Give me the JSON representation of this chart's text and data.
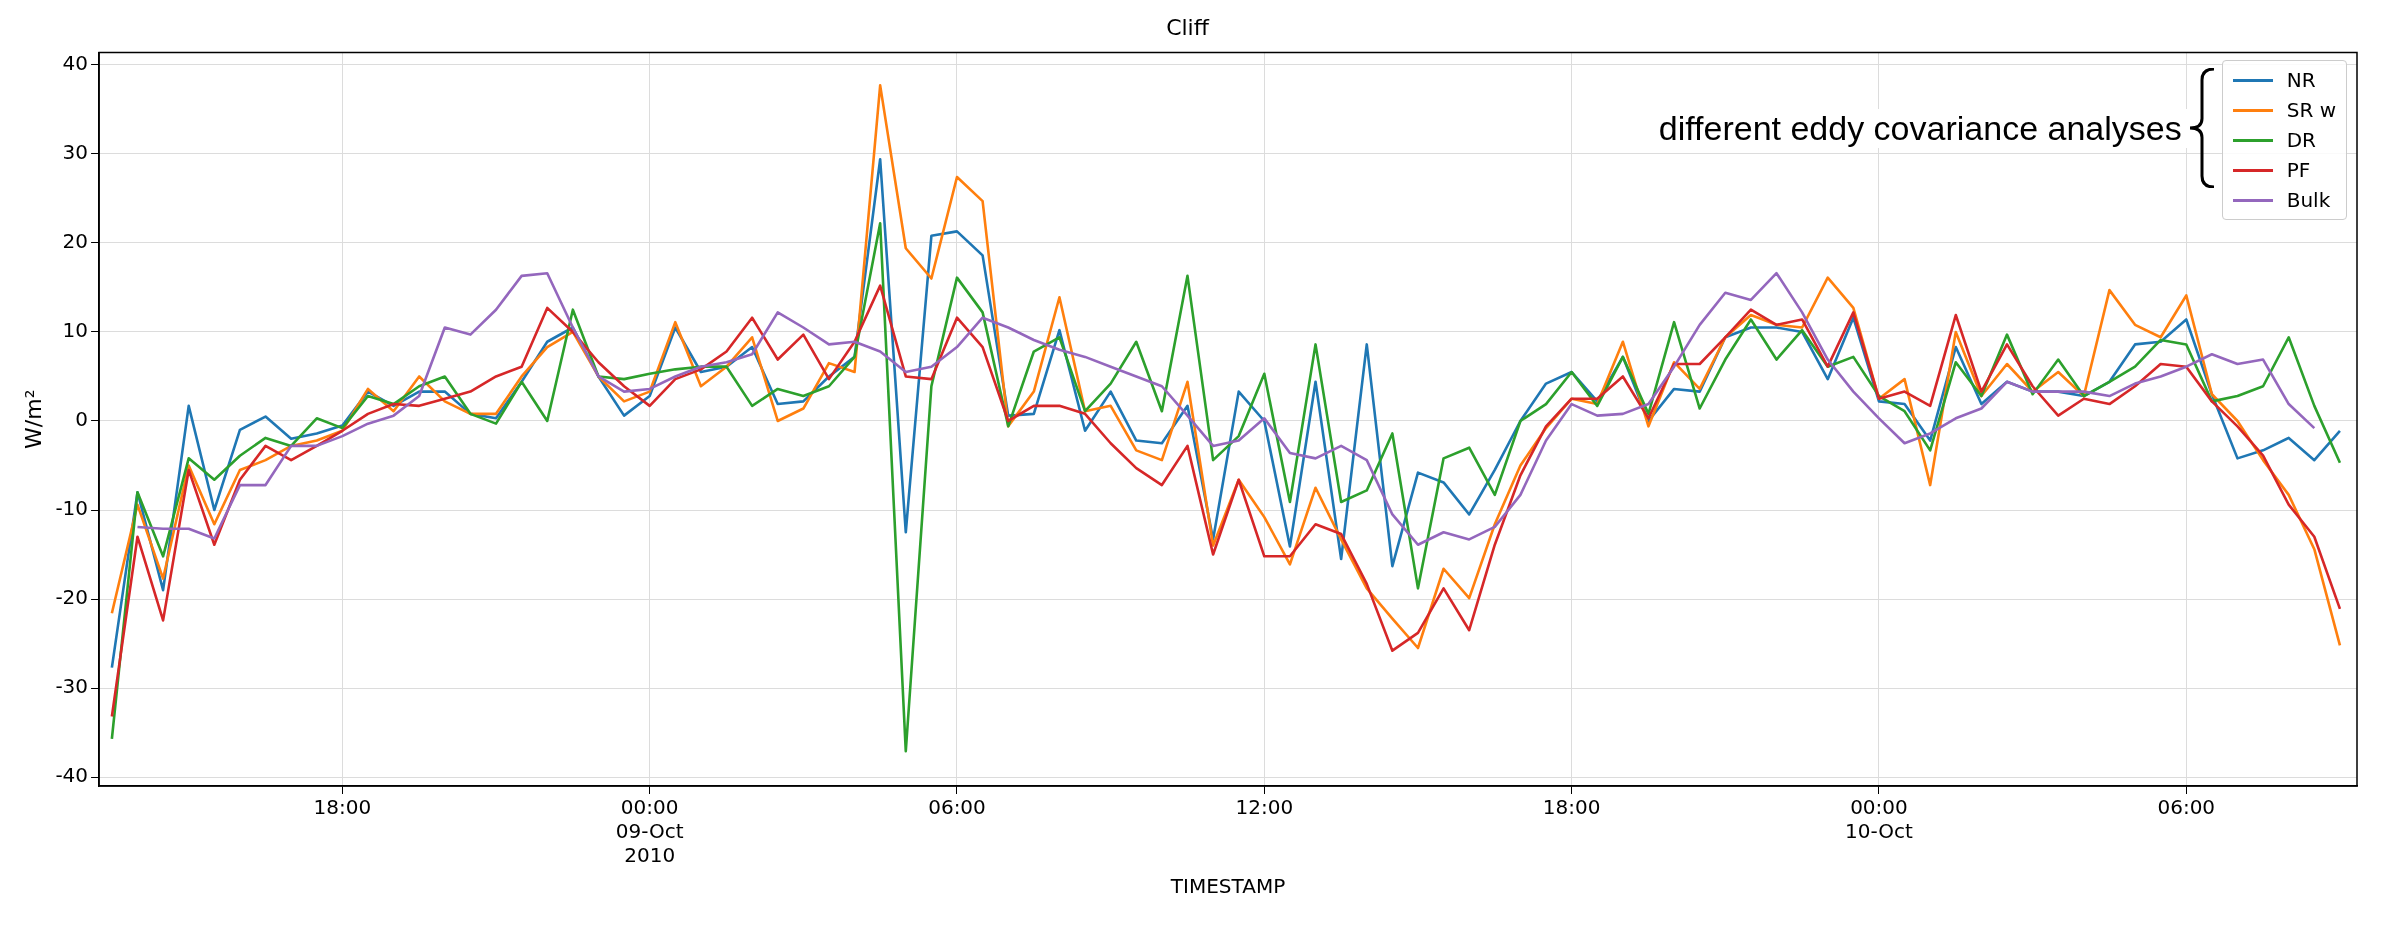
{
  "chart_data": {
    "type": "line",
    "title": "Cliff",
    "xlabel": "TIMESTAMP",
    "ylabel": "W/m²",
    "annotations": [
      "different eddy covariance analyses"
    ],
    "x": [
      "2010-10-08T13:30",
      "2010-10-08T14:00",
      "2010-10-08T14:30",
      "2010-10-08T15:00",
      "2010-10-08T15:30",
      "2010-10-08T16:00",
      "2010-10-08T16:30",
      "2010-10-08T17:00",
      "2010-10-08T17:30",
      "2010-10-08T18:00",
      "2010-10-08T18:30",
      "2010-10-08T19:00",
      "2010-10-08T19:30",
      "2010-10-08T20:00",
      "2010-10-08T20:30",
      "2010-10-08T21:00",
      "2010-10-08T21:30",
      "2010-10-08T22:00",
      "2010-10-08T22:30",
      "2010-10-08T23:00",
      "2010-10-08T23:30",
      "2010-10-09T00:00",
      "2010-10-09T00:30",
      "2010-10-09T01:00",
      "2010-10-09T01:30",
      "2010-10-09T02:00",
      "2010-10-09T02:30",
      "2010-10-09T03:00",
      "2010-10-09T03:30",
      "2010-10-09T04:00",
      "2010-10-09T04:30",
      "2010-10-09T05:00",
      "2010-10-09T05:30",
      "2010-10-09T06:00",
      "2010-10-09T06:30",
      "2010-10-09T07:00",
      "2010-10-09T07:30",
      "2010-10-09T08:00",
      "2010-10-09T08:30",
      "2010-10-09T09:00",
      "2010-10-09T09:30",
      "2010-10-09T10:00",
      "2010-10-09T10:30",
      "2010-10-09T11:00",
      "2010-10-09T11:30",
      "2010-10-09T12:00",
      "2010-10-09T12:30",
      "2010-10-09T13:00",
      "2010-10-09T13:30",
      "2010-10-09T14:00",
      "2010-10-09T14:30",
      "2010-10-09T15:00",
      "2010-10-09T15:30",
      "2010-10-09T16:00",
      "2010-10-09T16:30",
      "2010-10-09T17:00",
      "2010-10-09T17:30",
      "2010-10-09T18:00",
      "2010-10-09T18:30",
      "2010-10-09T19:00",
      "2010-10-09T19:30",
      "2010-10-09T20:00",
      "2010-10-09T20:30",
      "2010-10-09T21:00",
      "2010-10-09T21:30",
      "2010-10-09T22:00",
      "2010-10-09T22:30",
      "2010-10-09T23:00",
      "2010-10-09T23:30",
      "2010-10-10T00:00",
      "2010-10-10T00:30",
      "2010-10-10T01:00",
      "2010-10-10T01:30",
      "2010-10-10T02:00",
      "2010-10-10T02:30",
      "2010-10-10T03:00",
      "2010-10-10T03:30",
      "2010-10-10T04:00",
      "2010-10-10T04:30",
      "2010-10-10T05:00",
      "2010-10-10T05:30",
      "2010-10-10T06:00",
      "2010-10-10T06:30",
      "2010-10-10T07:00",
      "2010-10-10T07:30",
      "2010-10-10T08:00",
      "2010-10-10T08:30",
      "2010-10-10T09:00"
    ],
    "series": [
      {
        "name": "NR",
        "color": "#1f77b4",
        "values": [
          -27.7,
          -8,
          -19,
          1.7,
          -10,
          -1,
          0.5,
          -2,
          -1.4,
          -0.5,
          3.3,
          1.7,
          3.3,
          3.3,
          0.8,
          0.3,
          4.4,
          8.9,
          10.5,
          5,
          0.6,
          2.8,
          10.5,
          5.5,
          6.1,
          8.3,
          1.9,
          2.2,
          5,
          7.2,
          29.4,
          -12.5,
          20.8,
          21.3,
          18.6,
          0.6,
          0.8,
          10.2,
          -1.1,
          3.3,
          -2.2,
          -2.5,
          1.7,
          -13.3,
          3.3,
          0,
          -14.1,
          4.4,
          -15.5,
          8.6,
          -16.3,
          -5.8,
          -6.9,
          -10.5,
          -5.5,
          0,
          4.2,
          5.5,
          2.2,
          7.2,
          0,
          3.6,
          3.3,
          9.4,
          10.5,
          10.5,
          10,
          4.7,
          11.6,
          2.2,
          1.9,
          -2.2,
          8.3,
          1.9,
          4.4,
          3.3,
          3.3,
          2.8,
          4.4,
          8.6,
          8.9,
          11.4,
          3,
          -4.2,
          -3.3,
          -1.9,
          -4.4,
          -1.1
        ]
      },
      {
        "name": "SR w",
        "color": "#ff7f0e",
        "values": [
          -21.6,
          -9.4,
          -17.7,
          -5,
          -11.6,
          -5.5,
          -4.4,
          -2.8,
          -2.2,
          -1.1,
          3.6,
          1.1,
          5,
          2.2,
          0.8,
          0.8,
          5,
          8.3,
          10,
          5,
          2.2,
          3.3,
          11.1,
          3.9,
          6.1,
          9.4,
          0,
          1.4,
          6.5,
          5.5,
          37.7,
          19.4,
          16,
          27.4,
          24.7,
          -0.6,
          3.3,
          13.9,
          1.1,
          1.7,
          -3.3,
          -4.4,
          4.4,
          -14,
          -6.6,
          -10.8,
          -16.1,
          -7.5,
          -13.3,
          -18.8,
          -22.2,
          -25.5,
          -16.6,
          -19.9,
          -11.6,
          -5,
          -0.8,
          2.5,
          1.9,
          8.9,
          -0.6,
          6.6,
          3.6,
          9.4,
          11.9,
          10.8,
          10.5,
          16.1,
          12.7,
          2.5,
          4.7,
          -7.2,
          10,
          2.8,
          6.4,
          3.3,
          5.5,
          2.8,
          14.7,
          10.8,
          9.4,
          14.1,
          3,
          0,
          -4.4,
          -8.3,
          -14.4,
          -25.2
        ]
      },
      {
        "name": "DR",
        "color": "#2ca02c",
        "values": [
          -35.7,
          -8,
          -15.2,
          -4.2,
          -6.6,
          -3.9,
          -1.9,
          -2.8,
          0.3,
          -0.8,
          2.8,
          1.9,
          3.9,
          5,
          0.8,
          -0.3,
          4.4,
          0,
          12.5,
          5,
          4.7,
          5.3,
          5.8,
          6.1,
          6.1,
          1.7,
          3.6,
          2.8,
          3.9,
          7.2,
          22.2,
          -37.1,
          3.9,
          16.1,
          12.2,
          -0.6,
          7.8,
          9.4,
          1.1,
          4.2,
          8.9,
          1.1,
          16.3,
          -4.4,
          -1.7,
          5.3,
          -9.1,
          8.6,
          -9.1,
          -7.8,
          -1.4,
          -18.8,
          -4.2,
          -3,
          -8.3,
          0,
          1.9,
          5.5,
          1.7,
          7.2,
          0.8,
          11.1,
          1.4,
          6.9,
          11.4,
          6.9,
          10.2,
          6.1,
          7.2,
          2.8,
          1.1,
          -3.3,
          6.6,
          2.8,
          9.7,
          3,
          6.9,
          2.8,
          4.4,
          6.1,
          9.1,
          8.6,
          2.2,
          2.8,
          3.9,
          9.4,
          1.7,
          -4.7
        ]
      },
      {
        "name": "PF",
        "color": "#d62728",
        "values": [
          -33.2,
          -13,
          -22.4,
          -5.5,
          -13.9,
          -6.6,
          -2.8,
          -4.4,
          -2.8,
          -1.1,
          0.8,
          1.9,
          1.7,
          2.5,
          3.3,
          5,
          6.1,
          12.7,
          10,
          6.6,
          3.9,
          1.7,
          4.7,
          5.8,
          7.8,
          11.6,
          6.9,
          9.7,
          4.7,
          8.9,
          15.2,
          5,
          4.7,
          11.6,
          8.3,
          0,
          1.7,
          1.7,
          0.8,
          -2.5,
          -5.3,
          -7.2,
          -2.8,
          -15,
          -6.6,
          -15.2,
          -15.2,
          -11.6,
          -12.7,
          -18.3,
          -25.8,
          -23.8,
          -18.8,
          -23.5,
          -13.9,
          -6.1,
          -0.6,
          2.5,
          2.5,
          5,
          0.3,
          6.4,
          6.4,
          9.4,
          12.5,
          10.8,
          11.4,
          6.1,
          12.2,
          2.5,
          3.3,
          1.7,
          11.9,
          3.3,
          8.6,
          3.9,
          0.6,
          2.5,
          1.9,
          3.9,
          6.4,
          6.1,
          2.2,
          -0.6,
          -3.9,
          -9.4,
          -13,
          -21.1
        ]
      },
      {
        "name": "Bulk",
        "color": "#9467bd",
        "values": [
          null,
          -11.9,
          -12.1,
          -12.1,
          -13.2,
          -7.2,
          -7.2,
          -2.8,
          -2.8,
          -1.7,
          -0.3,
          0.6,
          2.8,
          10.5,
          9.7,
          12.5,
          16.3,
          16.6,
          10.5,
          5,
          3.3,
          3.6,
          5,
          6.1,
          6.6,
          7.5,
          12.2,
          10.5,
          8.6,
          8.9,
          7.8,
          5.5,
          6.1,
          8.3,
          11.6,
          10.5,
          9.1,
          8,
          7.2,
          6.1,
          5,
          3.9,
          0.6,
          -2.8,
          -2.2,
          0.3,
          -3.6,
          -4.2,
          -2.8,
          -4.4,
          -10.5,
          -13.9,
          -12.5,
          -13.3,
          -11.9,
          -8.3,
          -2.2,
          1.9,
          0.6,
          0.8,
          1.9,
          6.1,
          10.8,
          14.4,
          13.6,
          16.6,
          12.2,
          6.9,
          3.3,
          0.3,
          -2.5,
          -1.4,
          0.3,
          1.4,
          4.4,
          3.3,
          3.3,
          3.3,
          2.8,
          4.2,
          5,
          6.1,
          7.5,
          6.4,
          6.9,
          1.9,
          -0.8,
          null
        ]
      }
    ],
    "xlim": [
      "2010-10-08T13:15",
      "2010-10-10T09:20"
    ],
    "xticks": [
      {
        "value": "2010-10-08T18:00",
        "label": "18:00"
      },
      {
        "value": "2010-10-09T00:00",
        "label": "00:00\n09-Oct\n2010"
      },
      {
        "value": "2010-10-09T06:00",
        "label": "06:00"
      },
      {
        "value": "2010-10-09T12:00",
        "label": "12:00"
      },
      {
        "value": "2010-10-09T18:00",
        "label": "18:00"
      },
      {
        "value": "2010-10-10T00:00",
        "label": "00:00\n10-Oct"
      },
      {
        "value": "2010-10-10T06:00",
        "label": "06:00"
      }
    ],
    "ylim": [
      -41,
      41.4
    ],
    "yticks": [
      -40,
      -30,
      -20,
      -10,
      0,
      10,
      20,
      30,
      40
    ],
    "grid": true,
    "legend": "top right",
    "marker": "none",
    "line_style": "solid"
  }
}
